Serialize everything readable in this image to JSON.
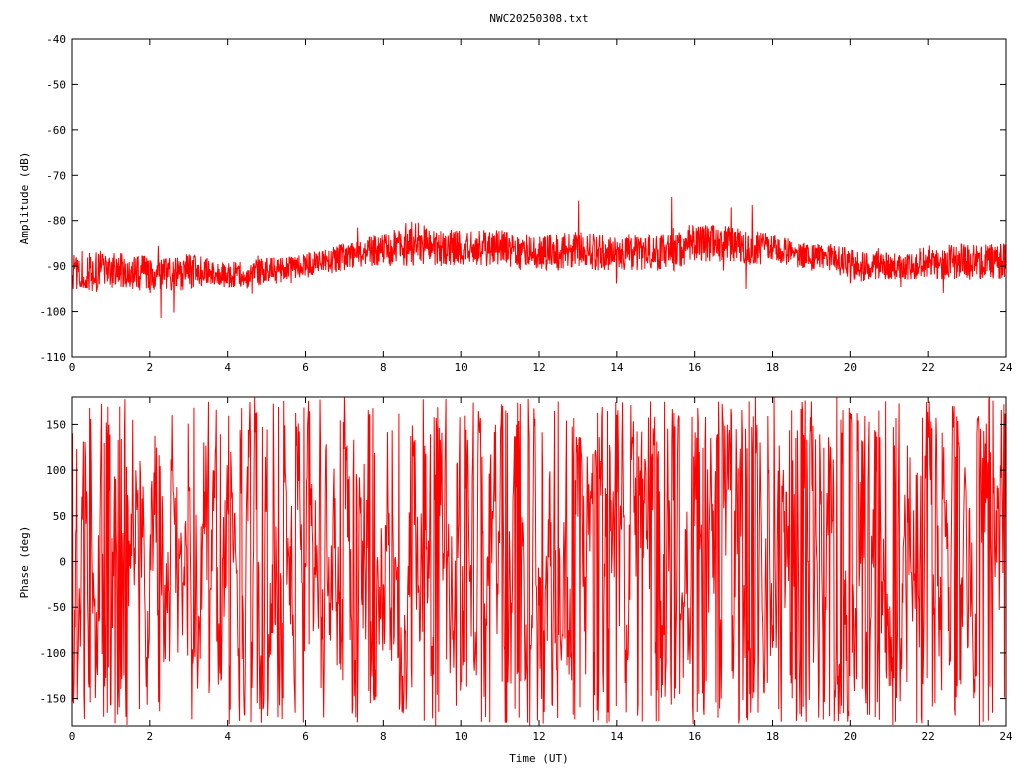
{
  "chart_data": [
    {
      "type": "line",
      "title": "NWC20250308.txt",
      "xlabel": "",
      "ylabel": "Amplitude (dB)",
      "xlim": [
        0,
        24
      ],
      "ylim": [
        -110,
        -40
      ],
      "xticks": [
        0,
        2,
        4,
        6,
        8,
        10,
        12,
        14,
        16,
        18,
        20,
        22,
        24
      ],
      "yticks": [
        -110,
        -100,
        -90,
        -80,
        -70,
        -60,
        -50,
        -40
      ],
      "xtick_labels": [
        "0",
        "2",
        "4",
        "6",
        "8",
        "10",
        "12",
        "14",
        "16",
        "18",
        "20",
        "22",
        "24"
      ],
      "ytick_labels": [
        "-110",
        "-100",
        "-90",
        "-80",
        "-70",
        "-60",
        "-50",
        "-40"
      ],
      "grid": false,
      "color": "#ff0000",
      "series": [
        {
          "x": [
            0,
            0.5,
            1,
            1.5,
            2,
            2.5,
            3,
            3.5,
            4,
            4.5,
            5,
            5.5,
            6,
            6.5,
            7,
            7.5,
            8,
            8.5,
            9,
            9.5,
            10,
            10.5,
            11,
            11.5,
            12,
            12.5,
            13,
            13.5,
            14,
            14.5,
            15,
            15.5,
            16,
            16.5,
            17,
            17.5,
            18,
            18.5,
            19,
            19.5,
            20,
            20.5,
            21,
            21.5,
            22,
            22.5,
            23,
            23.5,
            24
          ],
          "center": [
            -91,
            -91,
            -91,
            -91,
            -92,
            -92,
            -91,
            -91,
            -92,
            -92,
            -91,
            -91,
            -90,
            -89,
            -88,
            -87,
            -86,
            -85,
            -85,
            -86,
            -86,
            -86,
            -86,
            -87,
            -87,
            -87,
            -86,
            -87,
            -87,
            -87,
            -87,
            -86,
            -85,
            -85,
            -85,
            -86,
            -86,
            -87,
            -88,
            -88,
            -90,
            -90,
            -90,
            -90,
            -89,
            -89,
            -89,
            -89,
            -89
          ],
          "spread": [
            4,
            5,
            4,
            4,
            4,
            4,
            4,
            3,
            3,
            3,
            3,
            3,
            3,
            3,
            3,
            3,
            4,
            5,
            5,
            4,
            4,
            4,
            4,
            4,
            4,
            4,
            4,
            4,
            4,
            4,
            4,
            5,
            4,
            4,
            4,
            4,
            3,
            3,
            3,
            3,
            4,
            3,
            3,
            3,
            4,
            4,
            4,
            4,
            4
          ]
        }
      ]
    },
    {
      "type": "line",
      "title": "",
      "xlabel": "Time (UT)",
      "ylabel": "Phase (deg)",
      "xlim": [
        0,
        24
      ],
      "ylim": [
        -180,
        180
      ],
      "xticks": [
        0,
        2,
        4,
        6,
        8,
        10,
        12,
        14,
        16,
        18,
        20,
        22,
        24
      ],
      "yticks": [
        -150,
        -100,
        -50,
        0,
        50,
        100,
        150
      ],
      "xtick_labels": [
        "0",
        "2",
        "4",
        "6",
        "8",
        "10",
        "12",
        "14",
        "16",
        "18",
        "20",
        "22",
        "24"
      ],
      "ytick_labels": [
        "-150",
        "-100",
        "-50",
        "0",
        "50",
        "100",
        "150"
      ],
      "grid": false,
      "color": "#ff0000",
      "series": [
        {
          "x": [
            0,
            24
          ],
          "y": [
            -180,
            180
          ],
          "note_pattern": "wrapping phase, values span full -180..180 range"
        }
      ]
    }
  ]
}
